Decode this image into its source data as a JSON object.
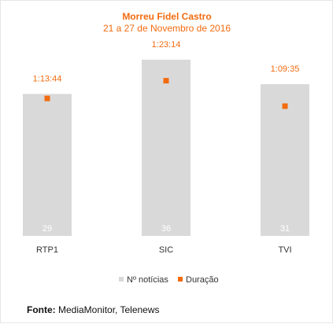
{
  "chart_data": {
    "type": "bar",
    "title": "Morreu Fidel Castro",
    "subtitle": "21 a 27 de Novembro de 2016",
    "categories": [
      "RTP1",
      "SIC",
      "TVI"
    ],
    "series": [
      {
        "name": "Nº notícias",
        "type": "bar",
        "values": [
          29,
          36,
          31
        ],
        "color": "#d9d9d9",
        "value_label_color": "#ffffff"
      },
      {
        "name": "Duração",
        "type": "scatter",
        "values": [
          "1:13:44",
          "1:23:14",
          "1:09:35"
        ],
        "values_seconds": [
          4424,
          4994,
          4175
        ],
        "color": "#f26b0f"
      }
    ],
    "ylim_count": [
      0,
      40
    ],
    "ylim_seconds": [
      0,
      6300
    ],
    "grid": false,
    "legend_position": "bottom-center"
  },
  "source": {
    "label": "Fonte:",
    "text": "MediaMonitor, Telenews"
  },
  "colors": {
    "accent": "#f26b0f",
    "bar": "#d9d9d9",
    "axis_text": "#333333"
  }
}
